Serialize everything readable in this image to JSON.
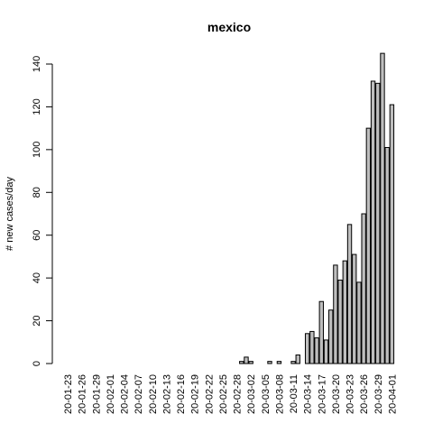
{
  "chart_data": {
    "type": "bar",
    "title": "mexico",
    "xlabel": "",
    "ylabel": "# new cases/day",
    "ylim": [
      0,
      150
    ],
    "y_ticks": [
      0,
      20,
      40,
      60,
      80,
      100,
      120,
      140
    ],
    "x_tick_labels": [
      "20-01-23",
      "20-01-26",
      "20-01-29",
      "20-02-01",
      "20-02-04",
      "20-02-07",
      "20-02-10",
      "20-02-13",
      "20-02-16",
      "20-02-19",
      "20-02-22",
      "20-02-25",
      "20-02-28",
      "20-03-02",
      "20-03-05",
      "20-03-08",
      "20-03-11",
      "20-03-14",
      "20-03-17",
      "20-03-20",
      "20-03-23",
      "20-03-26",
      "20-03-29",
      "20-04-01"
    ],
    "bar_fill": "#bebebe",
    "bar_stroke": "#000000",
    "grid": false,
    "categories": [
      "20-01-23",
      "20-01-24",
      "20-01-25",
      "20-01-26",
      "20-01-27",
      "20-01-28",
      "20-01-29",
      "20-01-30",
      "20-01-31",
      "20-02-01",
      "20-02-02",
      "20-02-03",
      "20-02-04",
      "20-02-05",
      "20-02-06",
      "20-02-07",
      "20-02-08",
      "20-02-09",
      "20-02-10",
      "20-02-11",
      "20-02-12",
      "20-02-13",
      "20-02-14",
      "20-02-15",
      "20-02-16",
      "20-02-17",
      "20-02-18",
      "20-02-19",
      "20-02-20",
      "20-02-21",
      "20-02-22",
      "20-02-23",
      "20-02-24",
      "20-02-25",
      "20-02-26",
      "20-02-27",
      "20-02-28",
      "20-02-29",
      "20-03-01",
      "20-03-02",
      "20-03-03",
      "20-03-04",
      "20-03-05",
      "20-03-06",
      "20-03-07",
      "20-03-08",
      "20-03-09",
      "20-03-10",
      "20-03-11",
      "20-03-12",
      "20-03-13",
      "20-03-14",
      "20-03-15",
      "20-03-16",
      "20-03-17",
      "20-03-18",
      "20-03-19",
      "20-03-20",
      "20-03-21",
      "20-03-22",
      "20-03-23",
      "20-03-24",
      "20-03-25",
      "20-03-26",
      "20-03-27",
      "20-03-28",
      "20-03-29",
      "20-03-30",
      "20-03-31",
      "20-04-01"
    ],
    "values": [
      0,
      0,
      0,
      0,
      0,
      0,
      0,
      0,
      0,
      0,
      0,
      0,
      0,
      0,
      0,
      0,
      0,
      0,
      0,
      0,
      0,
      0,
      0,
      0,
      0,
      0,
      0,
      0,
      0,
      0,
      0,
      0,
      0,
      0,
      0,
      0,
      0,
      1,
      3,
      1,
      0,
      0,
      0,
      1,
      0,
      1,
      0,
      0,
      1,
      4,
      0,
      14,
      15,
      12,
      29,
      11,
      25,
      46,
      39,
      48,
      65,
      51,
      38,
      70,
      110,
      132,
      131,
      145,
      101,
      121
    ]
  }
}
